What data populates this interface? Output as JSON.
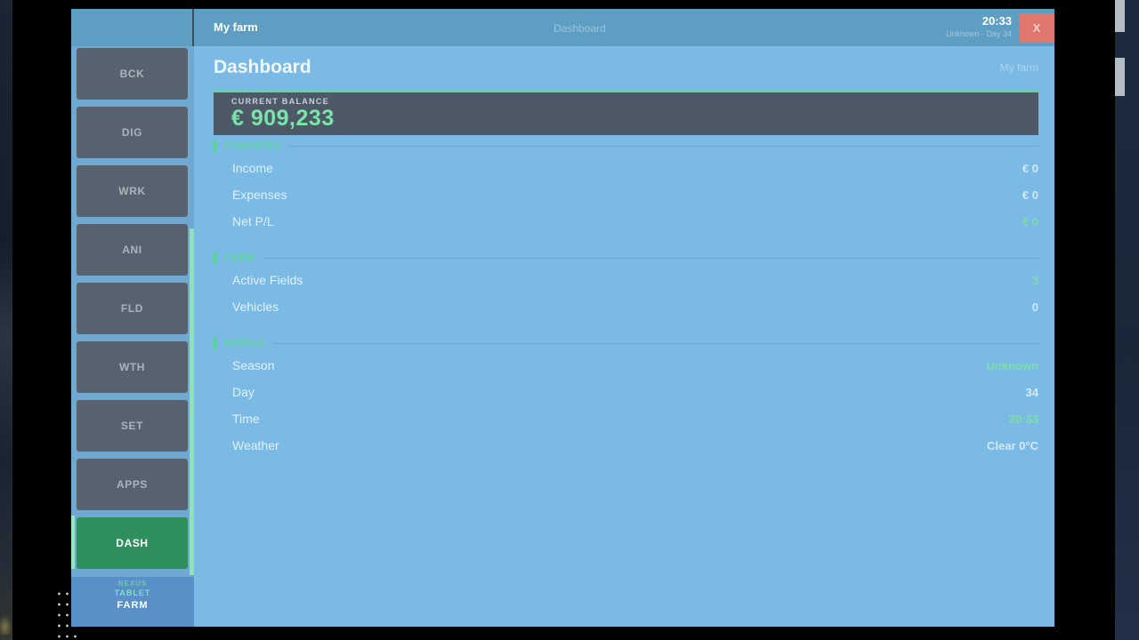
{
  "colors": {
    "topbar_blue": "#5e9ec3",
    "sidebar_blue": "#6fa9d2",
    "content_blue": "#7abae4",
    "button_slate": "#57626f",
    "active_button_green": "#2f8f5c",
    "accent_green": "#5ad397",
    "balance_value_green": "#7be4ab",
    "balance_card_slate": "#4d5967",
    "close_button_red": "#e0776e"
  },
  "topbar": {
    "app_title": "My farm",
    "page_indicator": "Dashboard",
    "clock": "20:33",
    "status": "Unknown - Day 34",
    "close_label": "X"
  },
  "sidebar": {
    "buttons": [
      {
        "label": "BCK"
      },
      {
        "label": "DIG"
      },
      {
        "label": "WRK"
      },
      {
        "label": "ANI"
      },
      {
        "label": "FLD"
      },
      {
        "label": "WTH"
      },
      {
        "label": "SET"
      },
      {
        "label": "APPS"
      },
      {
        "label": "DASH",
        "active": true
      }
    ],
    "footer": {
      "brand": "NEXUS",
      "device": "TABLET",
      "farm": "FARM"
    }
  },
  "main": {
    "title": "Dashboard",
    "subtitle": "My farm",
    "balance": {
      "label": "CURRENT BALANCE",
      "value": "€ 909,233"
    },
    "sections": [
      {
        "title": "FINANCES",
        "rows": [
          {
            "label": "Income",
            "value": "€ 0"
          },
          {
            "label": "Expenses",
            "value": "€ 0"
          },
          {
            "label": "Net P/L",
            "value": "€ 0"
          }
        ]
      },
      {
        "title": "FARM",
        "rows": [
          {
            "label": "Active Fields",
            "value": "3"
          },
          {
            "label": "Vehicles",
            "value": "0"
          }
        ]
      },
      {
        "title": "WORLD",
        "rows": [
          {
            "label": "Season",
            "value": "Unknown"
          },
          {
            "label": "Day",
            "value": "34"
          },
          {
            "label": "Time",
            "value": "20:33"
          },
          {
            "label": "Weather",
            "value": "Clear 0°C"
          }
        ]
      }
    ]
  }
}
